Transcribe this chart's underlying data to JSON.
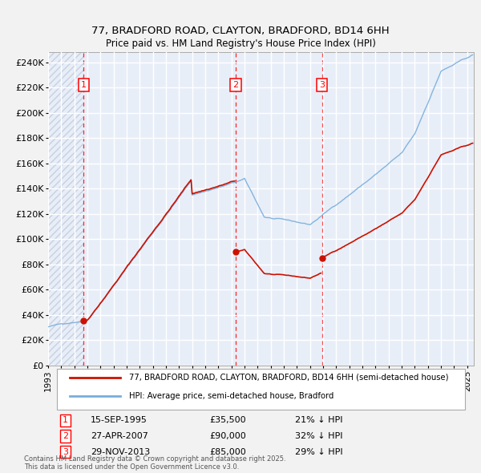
{
  "title": "77, BRADFORD ROAD, CLAYTON, BRADFORD, BD14 6HH",
  "subtitle": "Price paid vs. HM Land Registry's House Price Index (HPI)",
  "ytick_values": [
    0,
    20000,
    40000,
    60000,
    80000,
    100000,
    120000,
    140000,
    160000,
    180000,
    200000,
    220000,
    240000
  ],
  "ylim": [
    0,
    248000
  ],
  "xlim_start": 1993.0,
  "xlim_end": 2025.5,
  "background_color": "#e8eef8",
  "hatch_color": "#c8d0e0",
  "grid_color": "#ffffff",
  "sale_events": [
    {
      "date_num": 1995.71,
      "price": 35500,
      "label": "1",
      "date_str": "15-SEP-1995",
      "price_str": "£35,500",
      "pct": "21% ↓ HPI"
    },
    {
      "date_num": 2007.32,
      "price": 90000,
      "label": "2",
      "date_str": "27-APR-2007",
      "price_str": "£90,000",
      "pct": "32% ↓ HPI"
    },
    {
      "date_num": 2013.91,
      "price": 85000,
      "label": "3",
      "date_str": "29-NOV-2013",
      "price_str": "£85,000",
      "pct": "29% ↓ HPI"
    }
  ],
  "hpi_line_color": "#7aaedb",
  "sale_line_color": "#cc1100",
  "legend_sale_label": "77, BRADFORD ROAD, CLAYTON, BRADFORD, BD14 6HH (semi-detached house)",
  "legend_hpi_label": "HPI: Average price, semi-detached house, Bradford",
  "footnote": "Contains HM Land Registry data © Crown copyright and database right 2025.\nThis data is licensed under the Open Government Licence v3.0.",
  "hatch_end_year": 1995.71,
  "fig_bg": "#f2f2f2",
  "years": [
    1993,
    1994,
    1995,
    1996,
    1997,
    1998,
    1999,
    2000,
    2001,
    2002,
    2003,
    2004,
    2005,
    2006,
    2007,
    2008,
    2009,
    2010,
    2011,
    2012,
    2013,
    2014,
    2015,
    2016,
    2017,
    2018,
    2019,
    2020,
    2021,
    2022,
    2023,
    2024,
    2025
  ]
}
